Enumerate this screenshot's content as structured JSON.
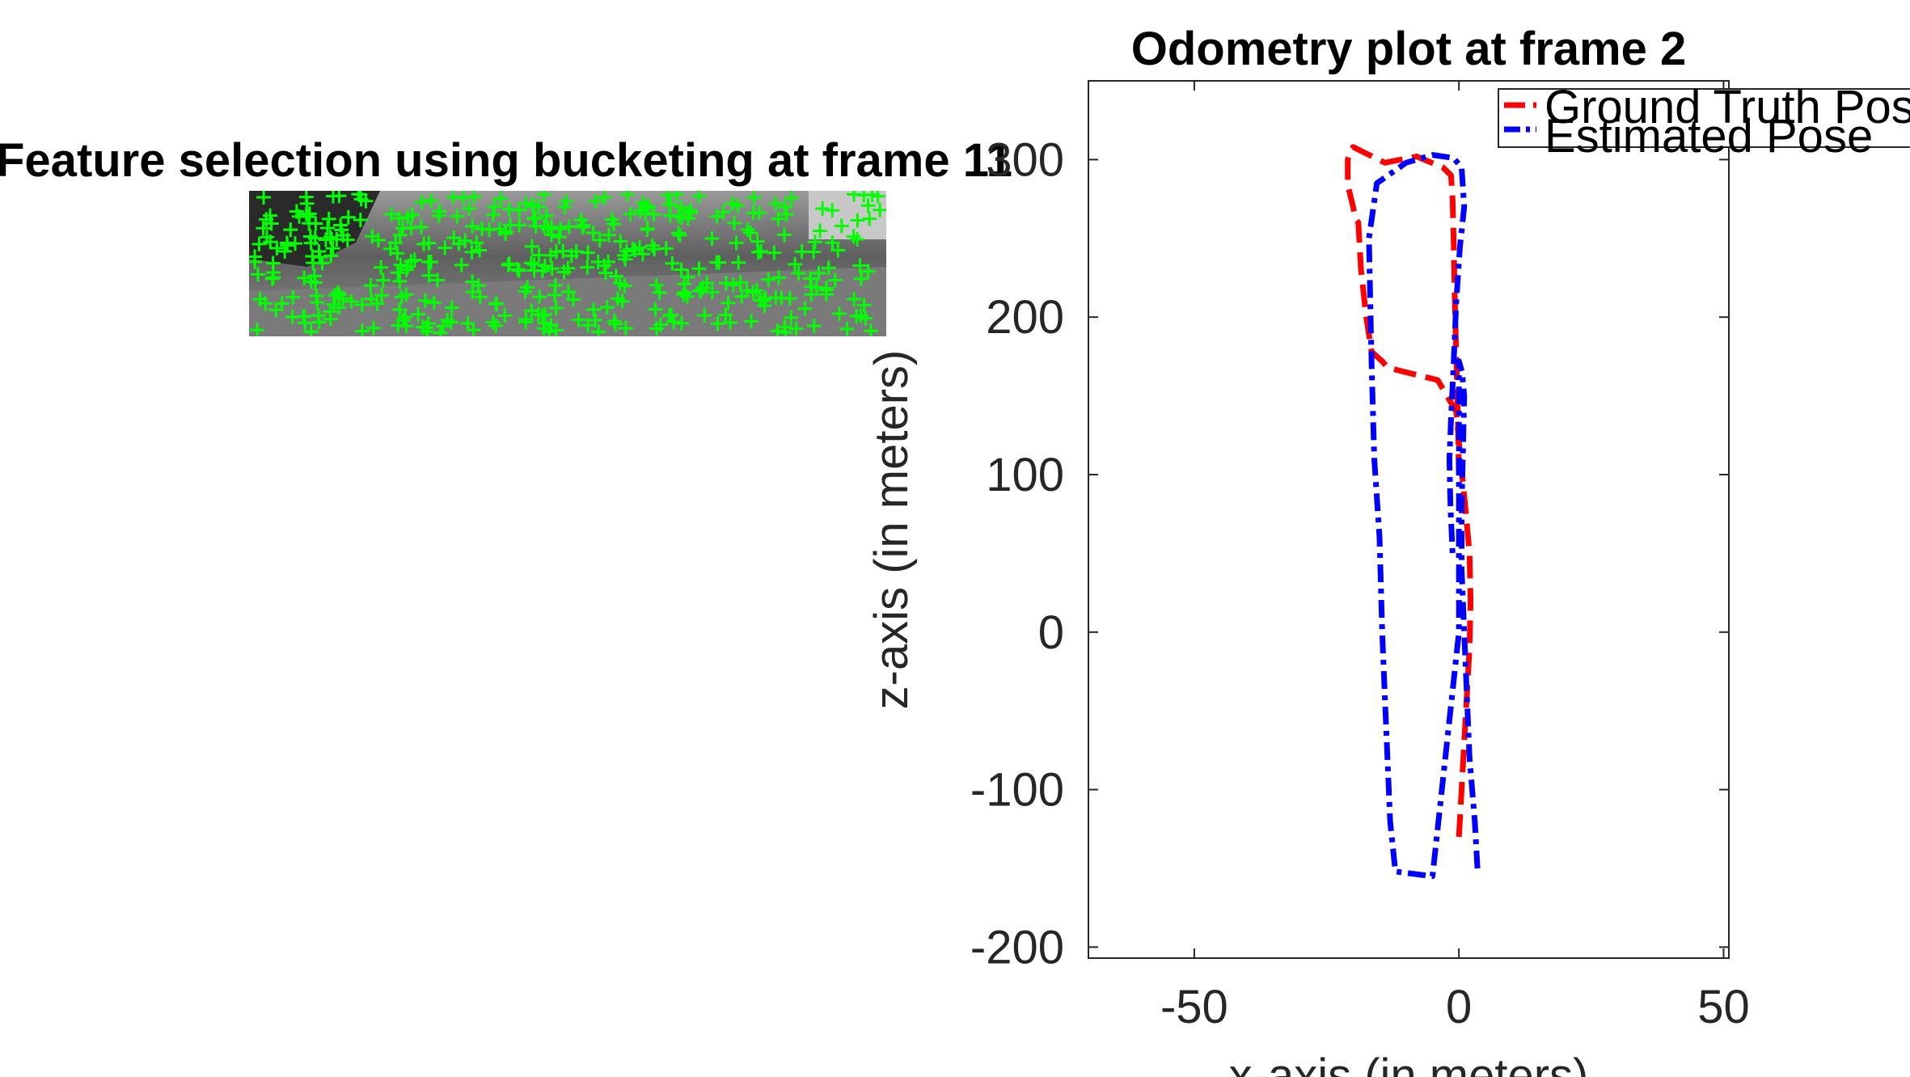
{
  "figure": {
    "image_panel": {
      "title": "Feature selection using bucketing at frame 11",
      "feature_marker_color": "#00ff00"
    }
  },
  "chart_data": {
    "type": "line",
    "title": "Odometry plot at frame 2",
    "xlabel": "x-axis (in meters)",
    "ylabel": "z-axis (in meters)",
    "xlim": [
      -70,
      51
    ],
    "ylim": [
      -207,
      350
    ],
    "xticks": [
      -50,
      0,
      50
    ],
    "yticks": [
      -200,
      -100,
      0,
      100,
      200,
      300
    ],
    "grid": false,
    "legend_position": "top-right",
    "series": [
      {
        "name": "Ground Truth Pose",
        "color": "#ff0000",
        "style": "dashed",
        "x": [
          0,
          0.5,
          1.0,
          1.5,
          2.0,
          2.2,
          2.0,
          1.2,
          0.3,
          -0.5,
          -4,
          -10,
          -13.5,
          -14.5,
          -15.5,
          -16.5,
          -17.5,
          -18.5,
          -19,
          -19.5,
          -20,
          -21,
          -21,
          -20,
          -14,
          -8,
          -3,
          -1.5,
          -1.2,
          -1.0,
          -0.8,
          -0.5,
          -0.2,
          0
        ],
        "y": [
          -130,
          -100,
          -70,
          -40,
          -10,
          20,
          50,
          80,
          110,
          140,
          160,
          165,
          168,
          172,
          175,
          178,
          200,
          230,
          260,
          262,
          270,
          284,
          300,
          308,
          298,
          302,
          295,
          290,
          275,
          250,
          215,
          175,
          135,
          100
        ]
      },
      {
        "name": "Estimated Pose",
        "color": "#0000ff",
        "style": "dashdot",
        "x": [
          3.5,
          3.0,
          2.0,
          1.5,
          1.0,
          0.5,
          0.5,
          0.8,
          1.0,
          0.6,
          0,
          0,
          -5,
          -12,
          -13,
          -13.5,
          -14,
          -14.5,
          -15,
          -16,
          -16.5,
          -17,
          -15.5,
          -10,
          -5,
          -1,
          0.5,
          1,
          0.2,
          -0.5,
          -1,
          -1.5,
          -1.8,
          -1.6,
          -1.2
        ],
        "y": [
          -150,
          -120,
          -80,
          -40,
          0,
          40,
          80,
          120,
          150,
          165,
          172,
          0,
          -155,
          -152,
          -120,
          -80,
          -40,
          0,
          60,
          110,
          170,
          250,
          285,
          298,
          303,
          301,
          295,
          270,
          245,
          210,
          170,
          135,
          110,
          80,
          50
        ]
      }
    ]
  }
}
